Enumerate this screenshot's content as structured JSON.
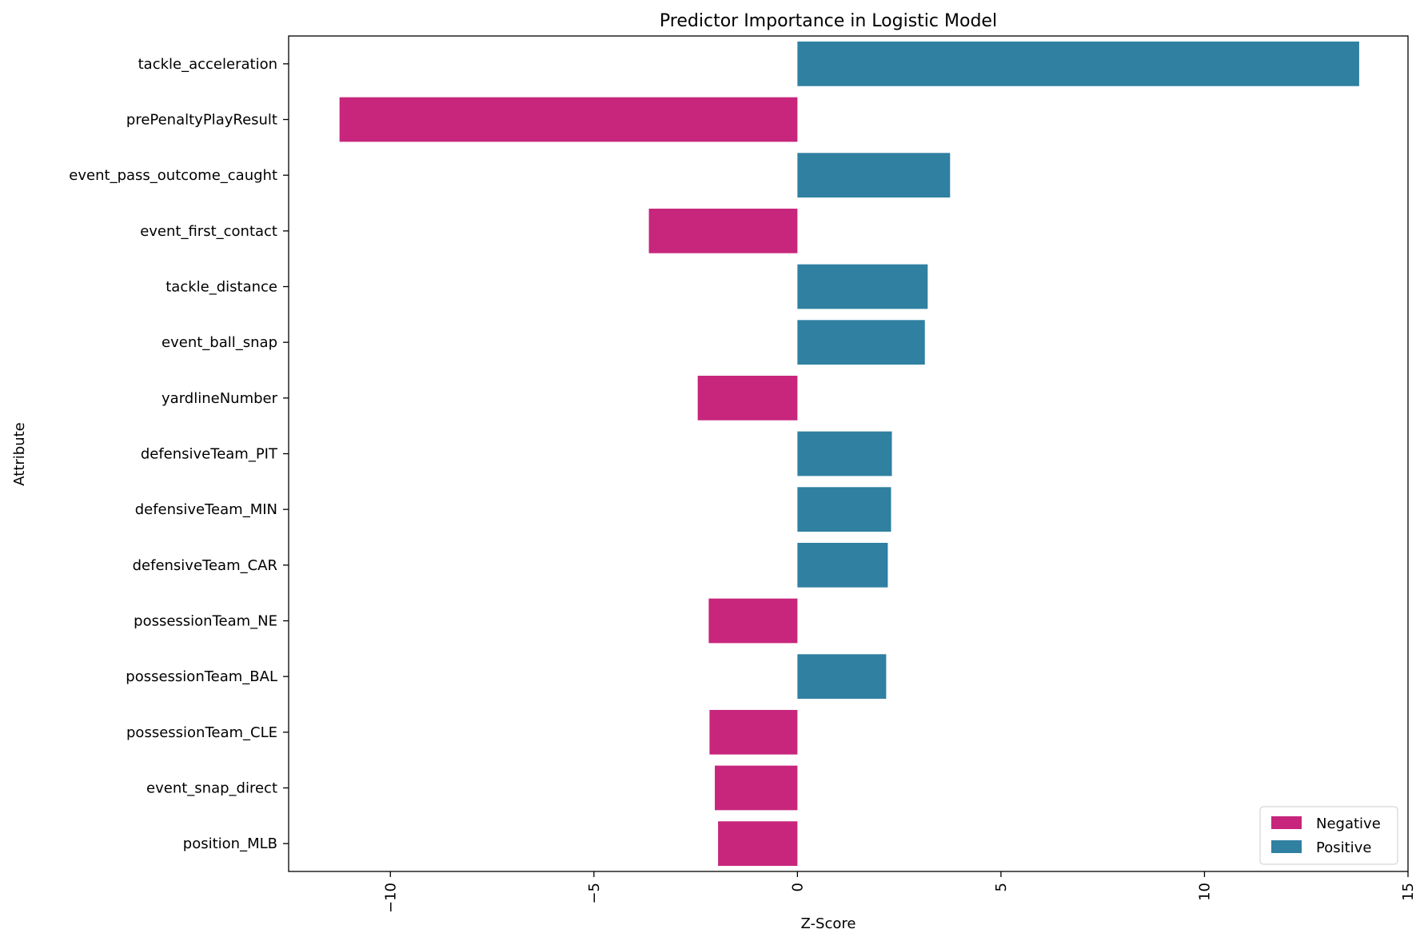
{
  "chart_data": {
    "type": "bar",
    "orientation": "horizontal",
    "title": "Predictor Importance in Logistic Model",
    "xlabel": "Z-Score",
    "ylabel": "Attribute",
    "xlim": [
      -12.5,
      15
    ],
    "xticks": [
      -10,
      -5,
      0,
      5,
      10,
      15
    ],
    "xtick_labels": [
      "−10",
      "−5",
      "0",
      "5",
      "10",
      "15"
    ],
    "grid": false,
    "legend_position": "bottom-right",
    "colors": {
      "Negative": "#c7267c",
      "Positive": "#2f80a1"
    },
    "legend": [
      "Negative",
      "Positive"
    ],
    "categories": [
      "tackle_acceleration",
      "prePenaltyPlayResult",
      "event_pass_outcome_caught",
      "event_first_contact",
      "tackle_distance",
      "event_ball_snap",
      "yardlineNumber",
      "defensiveTeam_PIT",
      "defensiveTeam_MIN",
      "defensiveTeam_CAR",
      "possessionTeam_NE",
      "possessionTeam_BAL",
      "possessionTeam_CLE",
      "event_snap_direct",
      "position_MLB"
    ],
    "values": [
      13.8,
      -11.25,
      3.75,
      -3.65,
      3.2,
      3.13,
      -2.45,
      2.32,
      2.3,
      2.22,
      -2.18,
      2.18,
      -2.16,
      -2.03,
      -1.95
    ],
    "sign": [
      "Positive",
      "Negative",
      "Positive",
      "Negative",
      "Positive",
      "Positive",
      "Negative",
      "Positive",
      "Positive",
      "Positive",
      "Negative",
      "Positive",
      "Negative",
      "Negative",
      "Negative"
    ]
  }
}
